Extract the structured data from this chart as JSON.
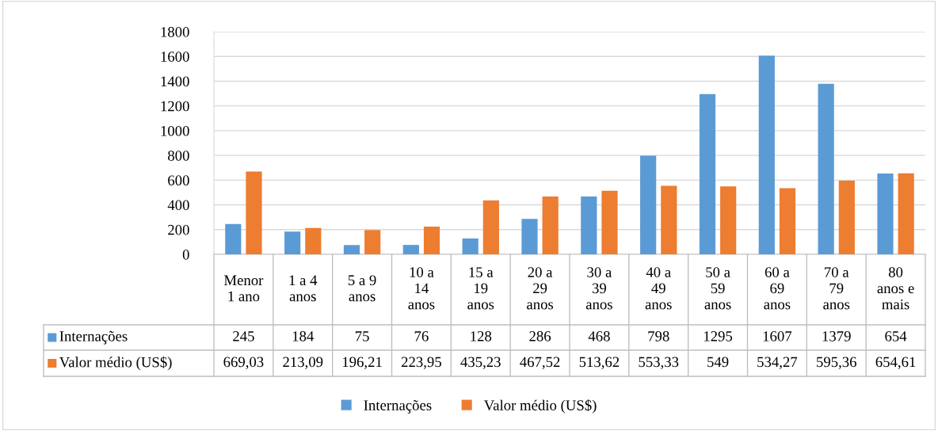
{
  "chart_data": {
    "type": "bar",
    "categories": [
      "Menor 1 ano",
      "1 a 4 anos",
      "5 a 9 anos",
      "10 a 14 anos",
      "15 a 19 anos",
      "20 a 29 anos",
      "30 a 39 anos",
      "40 a 49 anos",
      "50 a 59 anos",
      "60 a 69 anos",
      "70 a 79 anos",
      "80 anos e mais"
    ],
    "series": [
      {
        "name": "Internações",
        "color": "#5b9bd5",
        "values": [
          245,
          184,
          75,
          76,
          128,
          286,
          468,
          798,
          1295,
          1607,
          1379,
          654
        ],
        "value_labels": [
          "245",
          "184",
          "75",
          "76",
          "128",
          "286",
          "468",
          "798",
          "1295",
          "1607",
          "1379",
          "654"
        ]
      },
      {
        "name": "Valor médio (US$)",
        "color": "#ed7d31",
        "values": [
          669.03,
          213.09,
          196.21,
          223.95,
          435.23,
          467.52,
          513.62,
          553.33,
          549,
          534.27,
          595.36,
          654.61
        ],
        "value_labels": [
          "669,03",
          "213,09",
          "196,21",
          "223,95",
          "435,23",
          "467,52",
          "513,62",
          "553,33",
          "549",
          "534,27",
          "595,36",
          "654,61"
        ]
      }
    ],
    "ylim": [
      0,
      1800
    ],
    "yticks": [
      0,
      200,
      400,
      600,
      800,
      1000,
      1200,
      1400,
      1600,
      1800
    ],
    "grid": "y",
    "legend": "bottom"
  }
}
